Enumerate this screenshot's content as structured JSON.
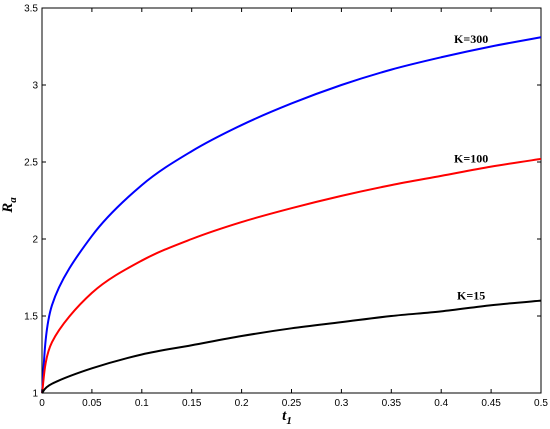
{
  "chart_data": {
    "type": "line",
    "title": "",
    "xlabel": {
      "main": "t",
      "sub": "1"
    },
    "ylabel": {
      "main": "R",
      "sub": "a"
    },
    "xlim": [
      0,
      0.5
    ],
    "ylim": [
      1,
      3.5
    ],
    "grid": false,
    "x_ticks": [
      "0",
      "0.05",
      "0.1",
      "0.15",
      "0.2",
      "0.25",
      "0.3",
      "0.35",
      "0.4",
      "0.45",
      "0.5"
    ],
    "y_ticks": [
      "1",
      "1.5",
      "2",
      "2.5",
      "3",
      "3.5"
    ],
    "x": [
      0,
      0.01,
      0.05,
      0.1,
      0.15,
      0.2,
      0.25,
      0.3,
      0.35,
      0.4,
      0.45,
      0.5
    ],
    "series": [
      {
        "name": "K=300",
        "color": "#0000ff",
        "values": [
          1.0,
          1.57,
          2.02,
          2.35,
          2.57,
          2.74,
          2.88,
          3.0,
          3.1,
          3.18,
          3.25,
          3.31
        ]
      },
      {
        "name": "K=100",
        "color": "#ff0000",
        "values": [
          1.0,
          1.33,
          1.65,
          1.86,
          2.0,
          2.11,
          2.2,
          2.28,
          2.35,
          2.41,
          2.47,
          2.52
        ]
      },
      {
        "name": "K=15",
        "color": "#000000",
        "values": [
          1.0,
          1.06,
          1.16,
          1.25,
          1.31,
          1.37,
          1.42,
          1.46,
          1.5,
          1.53,
          1.57,
          1.6
        ]
      }
    ]
  }
}
